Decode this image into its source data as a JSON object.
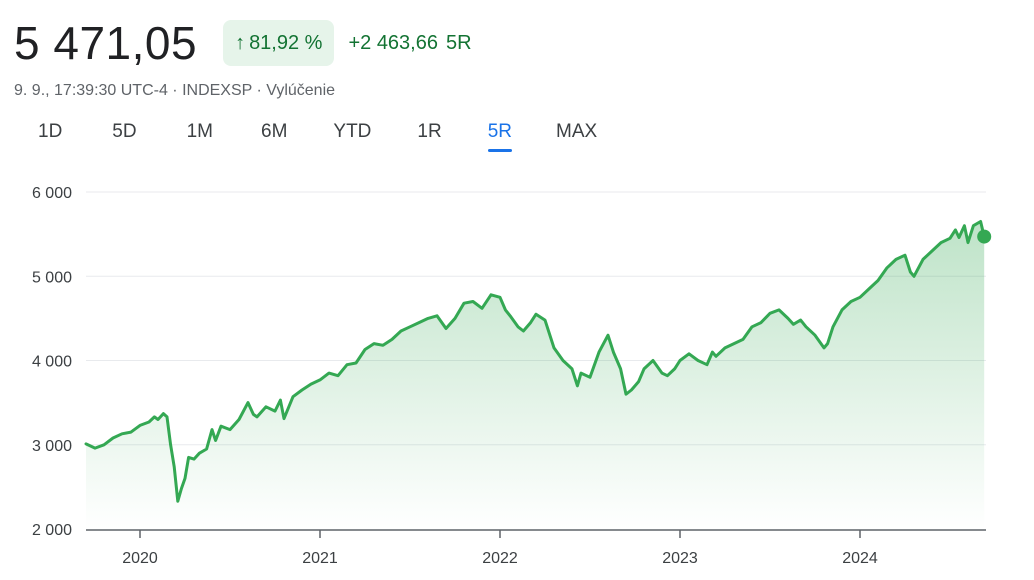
{
  "quote": {
    "price": "5 471,05",
    "arrow_icon": "arrow-up-icon",
    "change_percent": "81,92 %",
    "change_value": "+2 463,66",
    "change_period": "5R",
    "meta": "9. 9., 17:39:30 UTC-4 · INDEXSP · Vylúčenie"
  },
  "tabs": [
    {
      "label": "1D"
    },
    {
      "label": "5D"
    },
    {
      "label": "1M"
    },
    {
      "label": "6M"
    },
    {
      "label": "YTD"
    },
    {
      "label": "1R"
    },
    {
      "label": "5R",
      "active": true
    },
    {
      "label": "MAX"
    }
  ],
  "colors": {
    "line": "#34a853",
    "positive_text": "#137333",
    "badge_bg": "#e6f4ea",
    "active_tab": "#1a73e8"
  },
  "chart_data": {
    "type": "area",
    "title": "",
    "xlabel": "",
    "ylabel": "",
    "ylim": [
      2000,
      6000
    ],
    "xlim": [
      2019.7,
      2024.7
    ],
    "grid": "horizontal",
    "y_ticks": [
      {
        "value": 6000,
        "label": "6 000"
      },
      {
        "value": 5000,
        "label": "5 000"
      },
      {
        "value": 4000,
        "label": "4 000"
      },
      {
        "value": 3000,
        "label": "3 000"
      },
      {
        "value": 2000,
        "label": "2 000"
      }
    ],
    "x_ticks": [
      {
        "value": 2020,
        "label": "2020"
      },
      {
        "value": 2021,
        "label": "2021"
      },
      {
        "value": 2022,
        "label": "2022"
      },
      {
        "value": 2023,
        "label": "2023"
      },
      {
        "value": 2024,
        "label": "2024"
      }
    ],
    "series": [
      {
        "x": [
          2019.7,
          2019.75,
          2019.8,
          2019.85,
          2019.9,
          2019.95,
          2020.0,
          2020.05,
          2020.08,
          2020.1,
          2020.13,
          2020.15,
          2020.17,
          2020.19,
          2020.21,
          2020.23,
          2020.25,
          2020.27,
          2020.3,
          2020.33,
          2020.37,
          2020.4,
          2020.42,
          2020.45,
          2020.5,
          2020.55,
          2020.6,
          2020.63,
          2020.65,
          2020.7,
          2020.75,
          2020.78,
          2020.8,
          2020.85,
          2020.9,
          2020.95,
          2021.0,
          2021.05,
          2021.1,
          2021.15,
          2021.2,
          2021.25,
          2021.3,
          2021.35,
          2021.4,
          2021.45,
          2021.5,
          2021.55,
          2021.6,
          2021.65,
          2021.7,
          2021.75,
          2021.8,
          2021.85,
          2021.9,
          2021.95,
          2022.0,
          2022.03,
          2022.06,
          2022.1,
          2022.13,
          2022.17,
          2022.2,
          2022.25,
          2022.3,
          2022.35,
          2022.4,
          2022.43,
          2022.45,
          2022.5,
          2022.55,
          2022.6,
          2022.63,
          2022.67,
          2022.7,
          2022.73,
          2022.77,
          2022.8,
          2022.85,
          2022.9,
          2022.93,
          2022.97,
          2023.0,
          2023.05,
          2023.1,
          2023.15,
          2023.18,
          2023.2,
          2023.25,
          2023.3,
          2023.35,
          2023.4,
          2023.45,
          2023.5,
          2023.55,
          2023.6,
          2023.63,
          2023.67,
          2023.7,
          2023.75,
          2023.8,
          2023.82,
          2023.85,
          2023.9,
          2023.95,
          2024.0,
          2024.05,
          2024.1,
          2024.15,
          2024.2,
          2024.25,
          2024.28,
          2024.3,
          2024.35,
          2024.4,
          2024.45,
          2024.5,
          2024.53,
          2024.55,
          2024.58,
          2024.6,
          2024.63,
          2024.67,
          2024.69
        ],
        "values": [
          3010,
          2960,
          3000,
          3080,
          3130,
          3150,
          3230,
          3270,
          3330,
          3300,
          3370,
          3330,
          3000,
          2740,
          2330,
          2480,
          2600,
          2850,
          2830,
          2900,
          2950,
          3180,
          3050,
          3220,
          3180,
          3300,
          3500,
          3360,
          3330,
          3450,
          3400,
          3530,
          3310,
          3570,
          3650,
          3720,
          3770,
          3850,
          3820,
          3950,
          3970,
          4130,
          4200,
          4180,
          4250,
          4350,
          4400,
          4450,
          4500,
          4530,
          4380,
          4500,
          4680,
          4700,
          4620,
          4780,
          4750,
          4600,
          4520,
          4400,
          4350,
          4450,
          4550,
          4480,
          4150,
          4000,
          3900,
          3700,
          3850,
          3800,
          4100,
          4300,
          4100,
          3900,
          3600,
          3650,
          3750,
          3900,
          4000,
          3850,
          3820,
          3900,
          4000,
          4080,
          4000,
          3950,
          4100,
          4050,
          4150,
          4200,
          4250,
          4400,
          4450,
          4560,
          4600,
          4500,
          4430,
          4480,
          4400,
          4300,
          4150,
          4200,
          4400,
          4600,
          4700,
          4750,
          4850,
          4950,
          5100,
          5200,
          5250,
          5050,
          5000,
          5200,
          5300,
          5400,
          5450,
          5550,
          5460,
          5600,
          5400,
          5600,
          5650,
          5471
        ]
      }
    ]
  }
}
